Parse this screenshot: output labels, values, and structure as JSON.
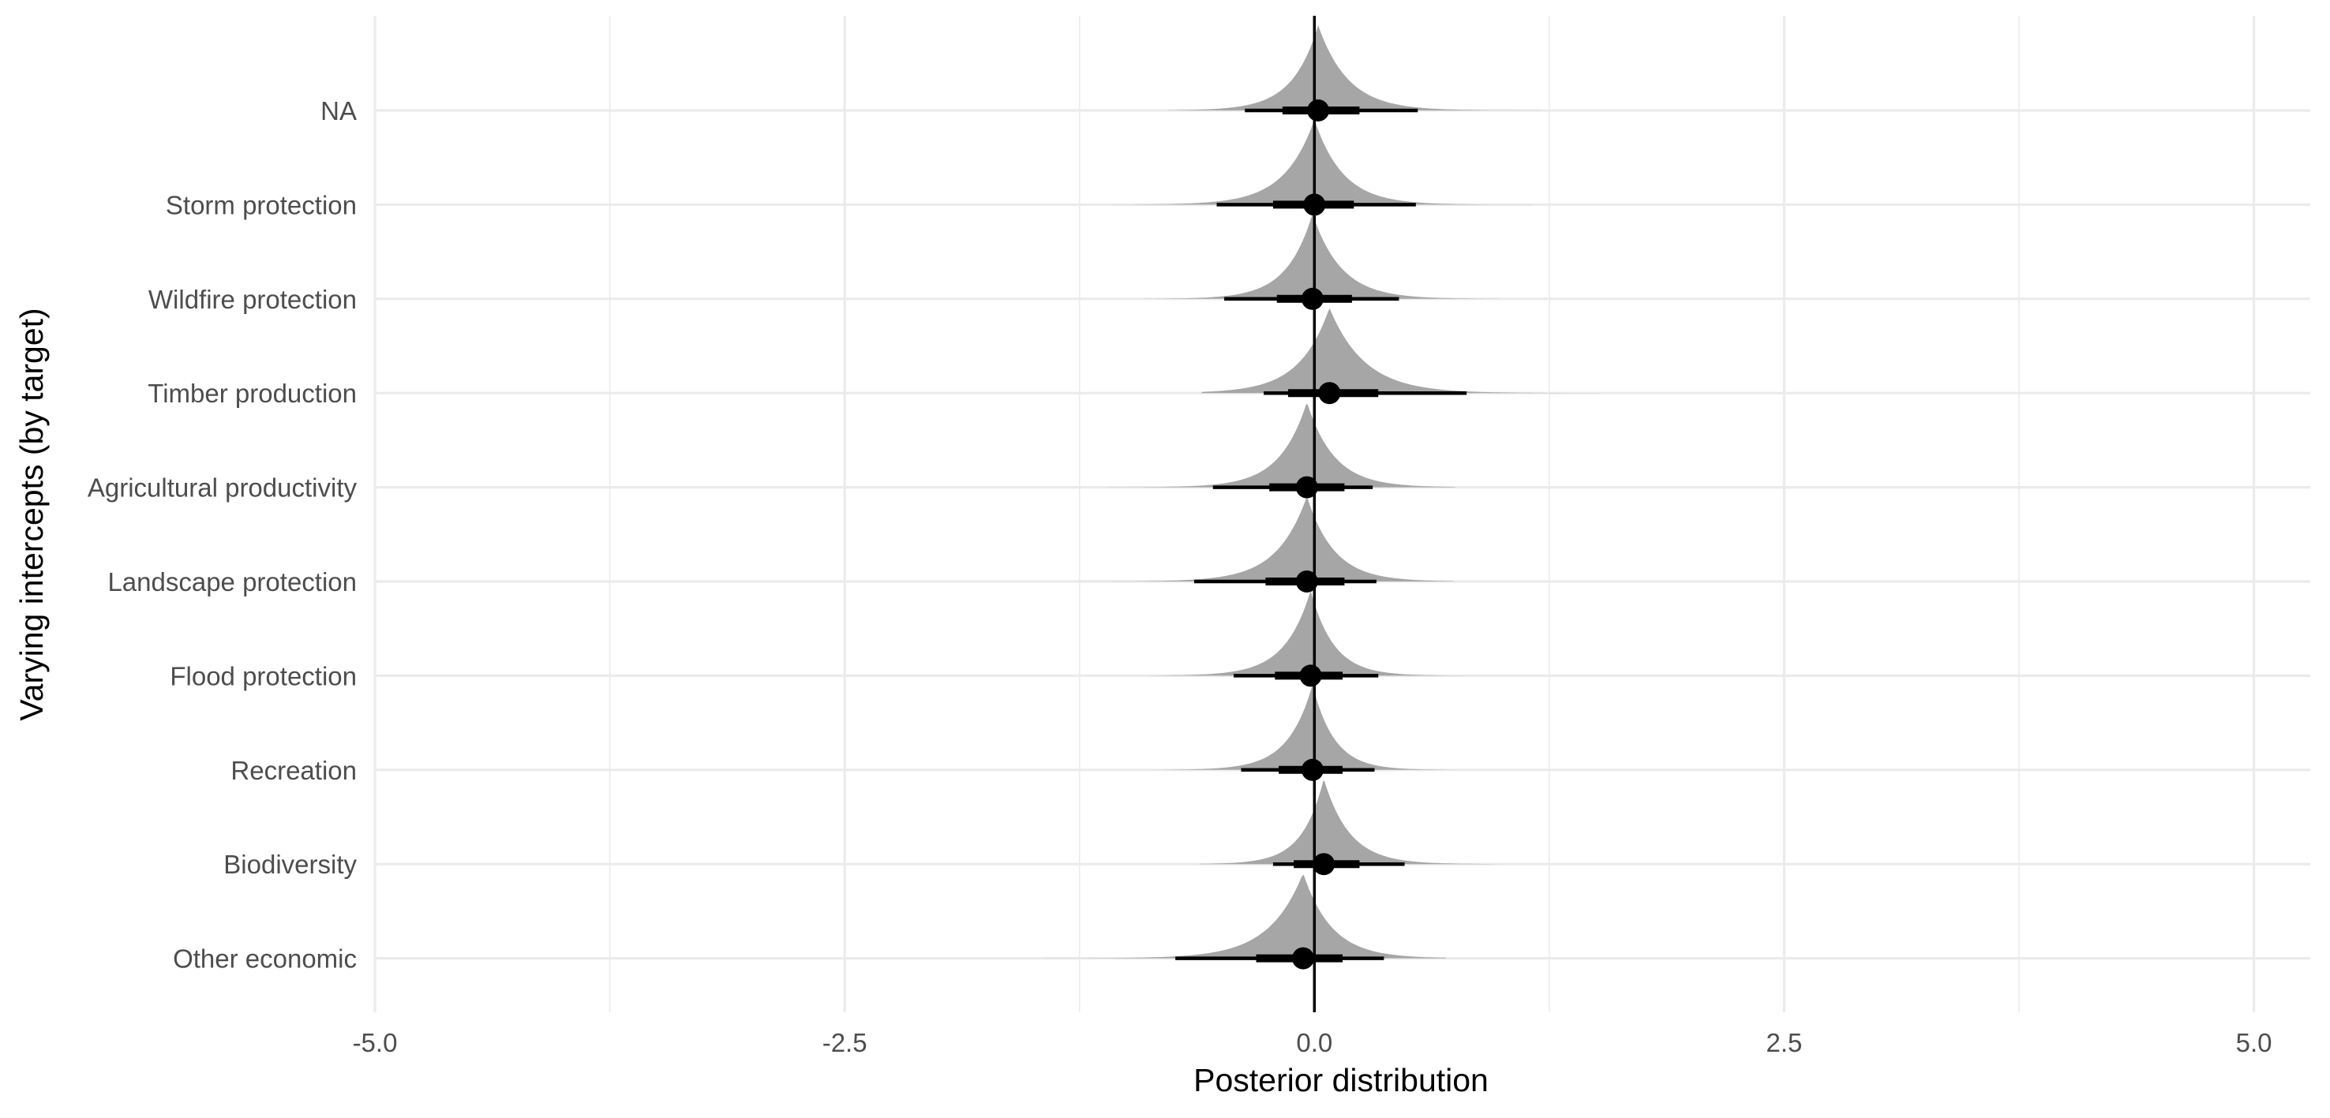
{
  "chart_data": {
    "type": "halfeye",
    "xlabel": "Posterior distribution",
    "ylabel": "Varying intercepts (by target)",
    "xlim": [
      -5.0,
      5.3
    ],
    "xticks": [
      -5.0,
      -2.5,
      0.0,
      2.5,
      5.0
    ],
    "xtick_labels": [
      "-5.0",
      "-2.5",
      "0.0",
      "2.5",
      "5.0"
    ],
    "grid": true,
    "zero_line": 0,
    "colors": {
      "density": "#a6a6a6",
      "interval": "#000000",
      "grid": "#ebebeb"
    },
    "categories": [
      "NA",
      "Storm protection",
      "Wildfire protection",
      "Timber production",
      "Agricultural productivity",
      "Landscape protection",
      "Flood protection",
      "Recreation",
      "Biodiversity",
      "Other economic"
    ],
    "series": [
      {
        "category": "NA",
        "median": 0.02,
        "interval_66": [
          -0.17,
          0.24
        ],
        "interval_95": [
          -0.37,
          0.55
        ],
        "range": [
          -0.78,
          1.2
        ]
      },
      {
        "category": "Storm protection",
        "median": 0.0,
        "interval_66": [
          -0.22,
          0.21
        ],
        "interval_95": [
          -0.52,
          0.54
        ],
        "range": [
          -1.08,
          1.16
        ]
      },
      {
        "category": "Wildfire protection",
        "median": -0.01,
        "interval_66": [
          -0.2,
          0.2
        ],
        "interval_95": [
          -0.48,
          0.45
        ],
        "range": [
          -1.0,
          1.0
        ]
      },
      {
        "category": "Timber production",
        "median": 0.08,
        "interval_66": [
          -0.14,
          0.34
        ],
        "interval_95": [
          -0.27,
          0.81
        ],
        "range": [
          -0.6,
          1.67
        ]
      },
      {
        "category": "Agricultural productivity",
        "median": -0.04,
        "interval_66": [
          -0.24,
          0.16
        ],
        "interval_95": [
          -0.54,
          0.31
        ],
        "range": [
          -1.1,
          0.75
        ]
      },
      {
        "category": "Landscape protection",
        "median": -0.04,
        "interval_66": [
          -0.26,
          0.16
        ],
        "interval_95": [
          -0.64,
          0.33
        ],
        "range": [
          -1.33,
          0.74
        ]
      },
      {
        "category": "Flood protection",
        "median": -0.02,
        "interval_66": [
          -0.21,
          0.15
        ],
        "interval_95": [
          -0.43,
          0.34
        ],
        "range": [
          -0.88,
          0.8
        ]
      },
      {
        "category": "Recreation",
        "median": -0.01,
        "interval_66": [
          -0.19,
          0.15
        ],
        "interval_95": [
          -0.39,
          0.32
        ],
        "range": [
          -0.86,
          0.77
        ]
      },
      {
        "category": "Biodiversity",
        "median": 0.05,
        "interval_66": [
          -0.11,
          0.24
        ],
        "interval_95": [
          -0.22,
          0.48
        ],
        "range": [
          -0.61,
          0.97
        ]
      },
      {
        "category": "Other economic",
        "median": -0.06,
        "interval_66": [
          -0.31,
          0.15
        ],
        "interval_95": [
          -0.74,
          0.37
        ],
        "range": [
          -1.6,
          0.7
        ]
      }
    ]
  }
}
